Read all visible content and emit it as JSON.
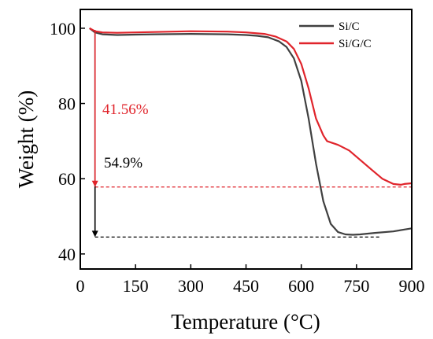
{
  "chart_data": {
    "type": "line",
    "xlabel": "Temperature (°C)",
    "ylabel": "Weight (%)",
    "xlim": [
      0,
      900
    ],
    "ylim": [
      36,
      105
    ],
    "xticks": [
      "0",
      "150",
      "300",
      "450",
      "600",
      "750",
      "900"
    ],
    "yticks": [
      "40",
      "60",
      "80",
      "100"
    ],
    "legend_position": "top-right",
    "series": [
      {
        "name": "Si/C",
        "color": "#404040",
        "x": [
          25,
          40,
          60,
          100,
          150,
          200,
          300,
          400,
          450,
          480,
          510,
          540,
          560,
          580,
          600,
          620,
          640,
          660,
          680,
          700,
          720,
          740,
          760,
          800,
          850,
          900
        ],
        "y": [
          100,
          98.9,
          98.4,
          98.2,
          98.3,
          98.4,
          98.5,
          98.4,
          98.2,
          98.0,
          97.6,
          96.5,
          95.0,
          92.0,
          86.0,
          76.0,
          64.0,
          54.0,
          48.0,
          45.8,
          45.2,
          45.1,
          45.2,
          45.6,
          46.0,
          46.8
        ]
      },
      {
        "name": "Si/G/C",
        "color": "#e0242b",
        "x": [
          25,
          40,
          60,
          100,
          150,
          200,
          300,
          400,
          450,
          500,
          530,
          560,
          580,
          600,
          620,
          640,
          660,
          670,
          700,
          730,
          760,
          790,
          820,
          850,
          870,
          880,
          900
        ],
        "y": [
          100,
          99.2,
          98.9,
          98.8,
          98.9,
          99.0,
          99.2,
          99.1,
          98.9,
          98.5,
          97.8,
          96.5,
          94.5,
          90.5,
          84.0,
          76.0,
          71.5,
          70.0,
          69.0,
          67.5,
          65.0,
          62.5,
          60.0,
          58.6,
          58.4,
          58.6,
          58.8
        ]
      }
    ],
    "annotations": [
      {
        "text": "41.56%",
        "color": "#e0242b"
      },
      {
        "text": "54.9%",
        "color": "#000000"
      }
    ],
    "reference_lines": [
      {
        "y": 57.8,
        "color": "#e0242b",
        "style": "dashed"
      },
      {
        "y": 44.5,
        "color": "#000000",
        "style": "dashed"
      }
    ]
  }
}
